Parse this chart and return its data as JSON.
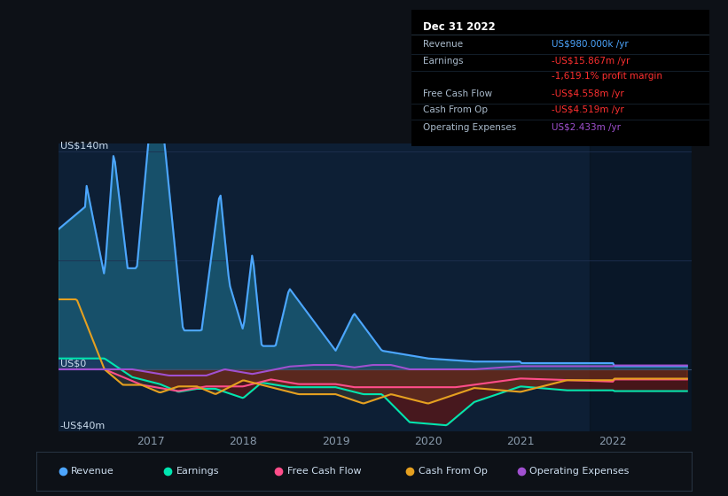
{
  "bg_color": "#0d1117",
  "plot_bg_color": "#0d1f35",
  "xlim": [
    2016.0,
    2022.85
  ],
  "ylim": [
    -40,
    145
  ],
  "grid_color": "#1e3050",
  "line_colors": {
    "revenue": "#4da6ff",
    "earnings": "#00e5b0",
    "free_cash_flow": "#ff4d8a",
    "cash_from_op": "#e5a020",
    "operating_expenses": "#a050d0"
  },
  "legend_items": [
    {
      "label": "Revenue",
      "color": "#4da6ff"
    },
    {
      "label": "Earnings",
      "color": "#00e5b0"
    },
    {
      "label": "Free Cash Flow",
      "color": "#ff4d8a"
    },
    {
      "label": "Cash From Op",
      "color": "#e5a020"
    },
    {
      "label": "Operating Expenses",
      "color": "#a050d0"
    }
  ],
  "info_box": {
    "title": "Dec 31 2022",
    "rows": [
      {
        "label": "Revenue",
        "value": "US$980.000k /yr",
        "value_color": "#4da6ff"
      },
      {
        "label": "Earnings",
        "value": "-US$15.867m /yr",
        "value_color": "#ff3030"
      },
      {
        "label": "",
        "value": "-1,619.1% profit margin",
        "value_color": "#ff3030"
      },
      {
        "label": "Free Cash Flow",
        "value": "-US$4.558m /yr",
        "value_color": "#ff3030"
      },
      {
        "label": "Cash From Op",
        "value": "-US$4.519m /yr",
        "value_color": "#ff3030"
      },
      {
        "label": "Operating Expenses",
        "value": "US$2.433m /yr",
        "value_color": "#a050d0"
      }
    ]
  },
  "xtick_labels": [
    "2017",
    "2018",
    "2019",
    "2020",
    "2021",
    "2022"
  ],
  "xtick_positions": [
    2017,
    2018,
    2019,
    2020,
    2021,
    2022
  ]
}
